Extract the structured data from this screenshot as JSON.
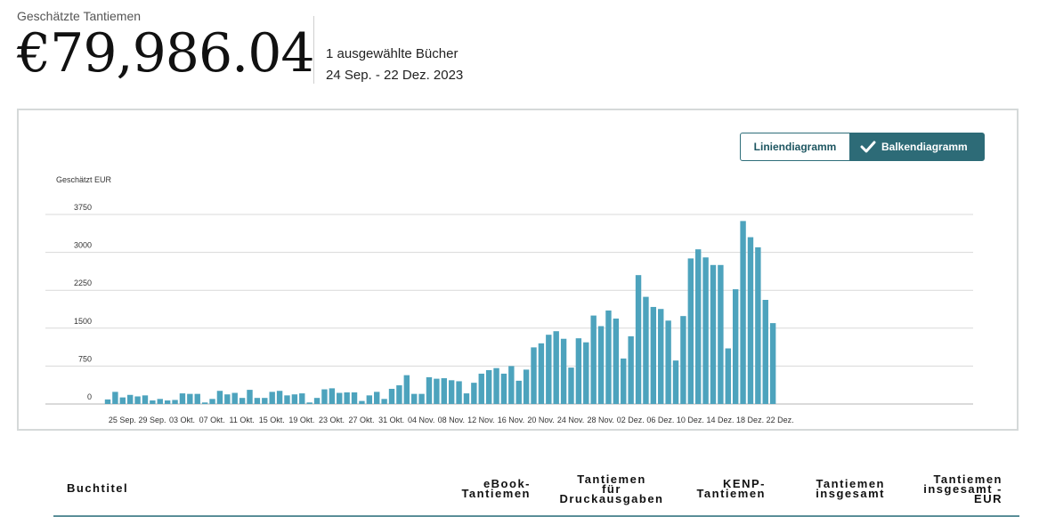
{
  "summary": {
    "label": "Geschätzte Tantiemen",
    "amount": "€79,986.04",
    "books_selected": "1 ausgewählte Bücher",
    "date_range": "24 Sep. - 22 Dez. 2023"
  },
  "chart_toggle": {
    "line_label": "Liniendiagramm",
    "bar_label": "Balkendiagramm",
    "selected": "bar"
  },
  "colors": {
    "bar": "#4da3bd",
    "gridline": "#d9d9d9",
    "toggle_active": "#2d6b77"
  },
  "chart_data": {
    "type": "bar",
    "ylabel": "Geschätzt EUR",
    "ylim": [
      0,
      3750
    ],
    "yticks": [
      0,
      750,
      1500,
      2250,
      3000,
      3750
    ],
    "grid": true,
    "xtick_labels": [
      "25 Sep.",
      "29 Sep.",
      "03 Okt.",
      "07 Okt.",
      "11 Okt.",
      "15 Okt.",
      "19 Okt.",
      "23 Okt.",
      "27 Okt.",
      "31 Okt.",
      "04 Nov.",
      "08 Nov.",
      "12 Nov.",
      "16 Nov.",
      "20 Nov.",
      "24 Nov.",
      "28 Nov.",
      "02 Dez.",
      "06 Dez.",
      "10 Dez.",
      "14 Dez.",
      "18 Dez.",
      "22 Dez."
    ],
    "xtick_every": 4,
    "categories": [
      "24 Sep.",
      "25 Sep.",
      "26 Sep.",
      "27 Sep.",
      "28 Sep.",
      "29 Sep.",
      "30 Sep.",
      "01 Okt.",
      "02 Okt.",
      "03 Okt.",
      "04 Okt.",
      "05 Okt.",
      "06 Okt.",
      "07 Okt.",
      "08 Okt.",
      "09 Okt.",
      "10 Okt.",
      "11 Okt.",
      "12 Okt.",
      "13 Okt.",
      "14 Okt.",
      "15 Okt.",
      "16 Okt.",
      "17 Okt.",
      "18 Okt.",
      "19 Okt.",
      "20 Okt.",
      "21 Okt.",
      "22 Okt.",
      "23 Okt.",
      "24 Okt.",
      "25 Okt.",
      "26 Okt.",
      "27 Okt.",
      "28 Okt.",
      "29 Okt.",
      "30 Okt.",
      "31 Okt.",
      "01 Nov.",
      "02 Nov.",
      "03 Nov.",
      "04 Nov.",
      "05 Nov.",
      "06 Nov.",
      "07 Nov.",
      "08 Nov.",
      "09 Nov.",
      "10 Nov.",
      "11 Nov.",
      "12 Nov.",
      "13 Nov.",
      "14 Nov.",
      "15 Nov.",
      "16 Nov.",
      "17 Nov.",
      "18 Nov.",
      "19 Nov.",
      "20 Nov.",
      "21 Nov.",
      "22 Nov.",
      "23 Nov.",
      "24 Nov.",
      "25 Nov.",
      "26 Nov.",
      "27 Nov.",
      "28 Nov.",
      "29 Nov.",
      "30 Nov.",
      "01 Dez.",
      "02 Dez.",
      "03 Dez.",
      "04 Dez.",
      "05 Dez.",
      "06 Dez.",
      "07 Dez.",
      "08 Dez.",
      "09 Dez.",
      "10 Dez.",
      "11 Dez.",
      "12 Dez.",
      "13 Dez.",
      "14 Dez.",
      "15 Dez.",
      "16 Dez.",
      "17 Dez.",
      "18 Dez.",
      "19 Dez.",
      "20 Dez.",
      "21 Dez.",
      "22 Dez."
    ],
    "values": [
      90,
      240,
      130,
      180,
      150,
      170,
      70,
      100,
      70,
      80,
      210,
      200,
      200,
      30,
      100,
      260,
      190,
      220,
      120,
      280,
      120,
      120,
      240,
      260,
      170,
      190,
      210,
      30,
      120,
      290,
      310,
      220,
      230,
      230,
      60,
      170,
      240,
      100,
      300,
      370,
      570,
      200,
      200,
      530,
      500,
      510,
      470,
      450,
      210,
      420,
      600,
      670,
      710,
      600,
      750,
      460,
      680,
      1120,
      1200,
      1370,
      1440,
      1290,
      720,
      1300,
      1220,
      1750,
      1540,
      1850,
      1690,
      900,
      1340,
      2550,
      2120,
      1920,
      1880,
      1650,
      860,
      1740,
      2880,
      3060,
      2900,
      2750,
      2750,
      1100,
      2270,
      3620,
      3300,
      3100,
      2060,
      1600
    ]
  },
  "table": {
    "headers": {
      "title": "Buchtitel",
      "ebook": [
        "eBook-",
        "Tantiemen"
      ],
      "print": [
        "Tantiemen",
        "für",
        "Druckausgaben"
      ],
      "kenp": [
        "KENP-",
        "Tantiemen"
      ],
      "total": [
        "Tantiemen",
        "insgesamt"
      ],
      "total_eur": [
        "Tantiemen",
        "insgesamt -",
        "EUR"
      ]
    }
  }
}
